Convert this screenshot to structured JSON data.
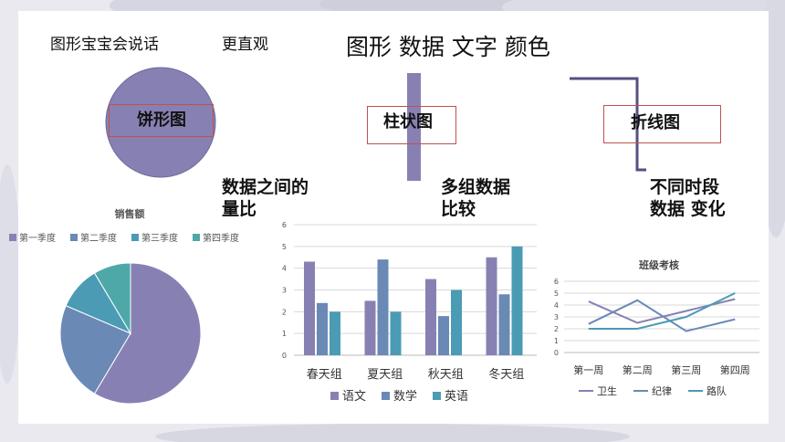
{
  "slide": {
    "heading_left": "图形宝宝会说话",
    "heading_mid": "更直观",
    "heading_main": "图形 数据 文字 颜色"
  },
  "pie_icon": {
    "label": "饼形图",
    "caption_line1": "数据之间的",
    "caption_line2": "量比"
  },
  "bar_icon": {
    "label": "柱状图",
    "caption_line1": "多组数据",
    "caption_line2": "比较"
  },
  "line_icon": {
    "label": "折线图",
    "caption_line1": "不同时段",
    "caption_line2": "数据 变化"
  },
  "colors": {
    "pie_icon": "#8781b3",
    "line_icon": "#555081",
    "box_border": "#c0504d"
  },
  "chart_data": [
    {
      "type": "pie",
      "title": "销售额",
      "categories": [
        "第一季度",
        "第二季度",
        "第三季度",
        "第四季度"
      ],
      "values": [
        8.2,
        3.2,
        1.4,
        1.2
      ],
      "colors": [
        "#8781b3",
        "#6a89b5",
        "#4b9bb5",
        "#4fa8a8"
      ],
      "legend_position": "top"
    },
    {
      "type": "bar",
      "categories": [
        "春天组",
        "夏天组",
        "秋天组",
        "冬天组"
      ],
      "series": [
        {
          "name": "语文",
          "values": [
            4.3,
            2.5,
            3.5,
            4.5
          ],
          "color": "#8781b3"
        },
        {
          "name": "数学",
          "values": [
            2.4,
            4.4,
            1.8,
            2.8
          ],
          "color": "#6a89b5"
        },
        {
          "name": "英语",
          "values": [
            2,
            2,
            3,
            5
          ],
          "color": "#4b9bb5"
        }
      ],
      "ylim": [
        0,
        6
      ],
      "yticks": [
        0,
        1,
        2,
        3,
        4,
        5,
        6
      ],
      "grid": true,
      "legend_position": "bottom"
    },
    {
      "type": "line",
      "title": "班级考核",
      "categories": [
        "第一周",
        "第二周",
        "第三周",
        "第四周"
      ],
      "series": [
        {
          "name": "卫生",
          "values": [
            4.3,
            2.5,
            3.5,
            4.5
          ],
          "color": "#8781b3"
        },
        {
          "name": "纪律",
          "values": [
            2.4,
            4.4,
            1.8,
            2.8
          ],
          "color": "#6a89b5"
        },
        {
          "name": "路队",
          "values": [
            2,
            2,
            3,
            5
          ],
          "color": "#4b9bb5"
        }
      ],
      "ylim": [
        0,
        6
      ],
      "yticks": [
        0,
        1,
        2,
        3,
        4,
        5,
        6
      ],
      "grid": true,
      "legend_position": "bottom"
    }
  ]
}
